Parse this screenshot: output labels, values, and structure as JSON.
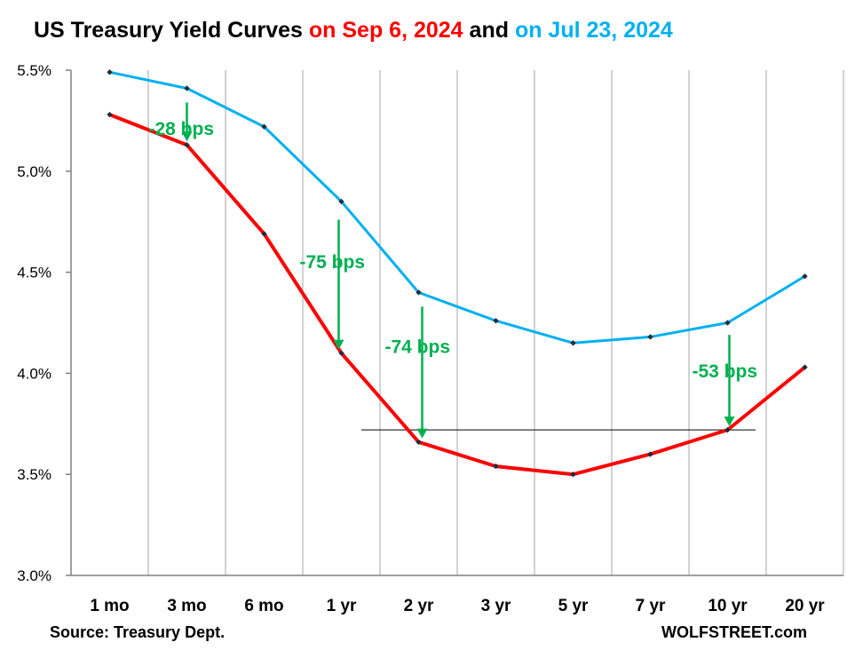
{
  "title": {
    "part1": "US Treasury Yield Curves ",
    "part2": "on Sep 6, 2024",
    "part3": " and ",
    "part4": "on Jul 23, 2024"
  },
  "source": "Source: Treasury Dept.",
  "credit": "WOLFSTREET.com",
  "colors": {
    "sep": "#ff0000",
    "jul": "#00b0f0",
    "annotation": "#00b050",
    "marker": "#1f2d3d"
  },
  "chart_data": {
    "type": "line",
    "categories": [
      "1 mo",
      "3 mo",
      "6 mo",
      "1 yr",
      "2 yr",
      "3 yr",
      "5 yr",
      "7 yr",
      "10 yr",
      "20 yr"
    ],
    "y_ticks": [
      "3.0%",
      "3.5%",
      "4.0%",
      "4.5%",
      "5.0%",
      "5.5%"
    ],
    "ylim": [
      3.0,
      5.5
    ],
    "grid": "vertical",
    "series": [
      {
        "key": "jul",
        "values": [
          5.49,
          5.41,
          5.22,
          4.85,
          4.4,
          4.26,
          4.15,
          4.18,
          4.25,
          4.48
        ]
      },
      {
        "key": "sep",
        "values": [
          5.28,
          5.13,
          4.69,
          4.1,
          3.66,
          3.54,
          3.5,
          3.6,
          3.72,
          4.03
        ]
      }
    ],
    "annotations": [
      {
        "label": "-28 bps",
        "category": "3 mo"
      },
      {
        "label": "-75 bps",
        "category": "1 yr"
      },
      {
        "label": "-74 bps",
        "category": "2 yr"
      },
      {
        "label": "-53 bps",
        "category": "10 yr"
      }
    ],
    "reference_line": {
      "value": 3.72
    }
  }
}
